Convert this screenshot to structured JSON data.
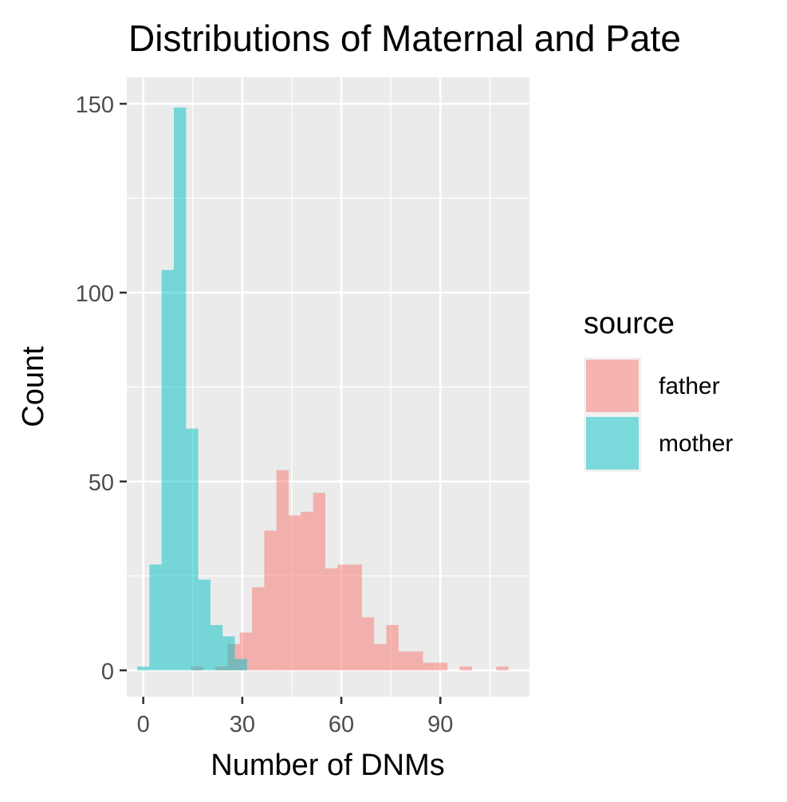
{
  "chart_data": {
    "type": "bar",
    "title": "Distributions of Maternal and Pate",
    "xlabel": "Number of DNMs",
    "ylabel": "Count",
    "xlim": [
      -5,
      117
    ],
    "ylim": [
      -7,
      157
    ],
    "x_ticks": [
      0,
      30,
      60,
      90
    ],
    "y_ticks": [
      0,
      50,
      100,
      150
    ],
    "bin_width": 3.7,
    "grid": true,
    "legend": {
      "title": "source",
      "position": "right",
      "entries": [
        "father",
        "mother"
      ]
    },
    "series": [
      {
        "name": "father",
        "color": "#F8766D",
        "bins": [
          {
            "x": 16.3,
            "y": 1
          },
          {
            "x": 20.0,
            "y": 0
          },
          {
            "x": 23.7,
            "y": 1
          },
          {
            "x": 27.4,
            "y": 7
          },
          {
            "x": 31.1,
            "y": 10
          },
          {
            "x": 34.8,
            "y": 22
          },
          {
            "x": 38.5,
            "y": 37
          },
          {
            "x": 42.2,
            "y": 53
          },
          {
            "x": 45.9,
            "y": 41
          },
          {
            "x": 49.6,
            "y": 42
          },
          {
            "x": 53.3,
            "y": 47
          },
          {
            "x": 57.0,
            "y": 27
          },
          {
            "x": 60.7,
            "y": 28
          },
          {
            "x": 64.4,
            "y": 28
          },
          {
            "x": 68.1,
            "y": 14
          },
          {
            "x": 71.8,
            "y": 7
          },
          {
            "x": 75.5,
            "y": 12
          },
          {
            "x": 79.2,
            "y": 5
          },
          {
            "x": 82.9,
            "y": 5
          },
          {
            "x": 86.6,
            "y": 2
          },
          {
            "x": 90.3,
            "y": 2
          },
          {
            "x": 94.0,
            "y": 0
          },
          {
            "x": 97.7,
            "y": 1
          },
          {
            "x": 101.4,
            "y": 0
          },
          {
            "x": 105.1,
            "y": 0
          },
          {
            "x": 108.8,
            "y": 1
          }
        ]
      },
      {
        "name": "mother",
        "color": "#00BFC4",
        "bins": [
          {
            "x": 0.0,
            "y": 1
          },
          {
            "x": 3.7,
            "y": 28
          },
          {
            "x": 7.4,
            "y": 106
          },
          {
            "x": 11.1,
            "y": 149
          },
          {
            "x": 14.8,
            "y": 64
          },
          {
            "x": 18.5,
            "y": 24
          },
          {
            "x": 22.2,
            "y": 12
          },
          {
            "x": 25.9,
            "y": 9
          },
          {
            "x": 29.6,
            "y": 3
          }
        ]
      }
    ]
  }
}
